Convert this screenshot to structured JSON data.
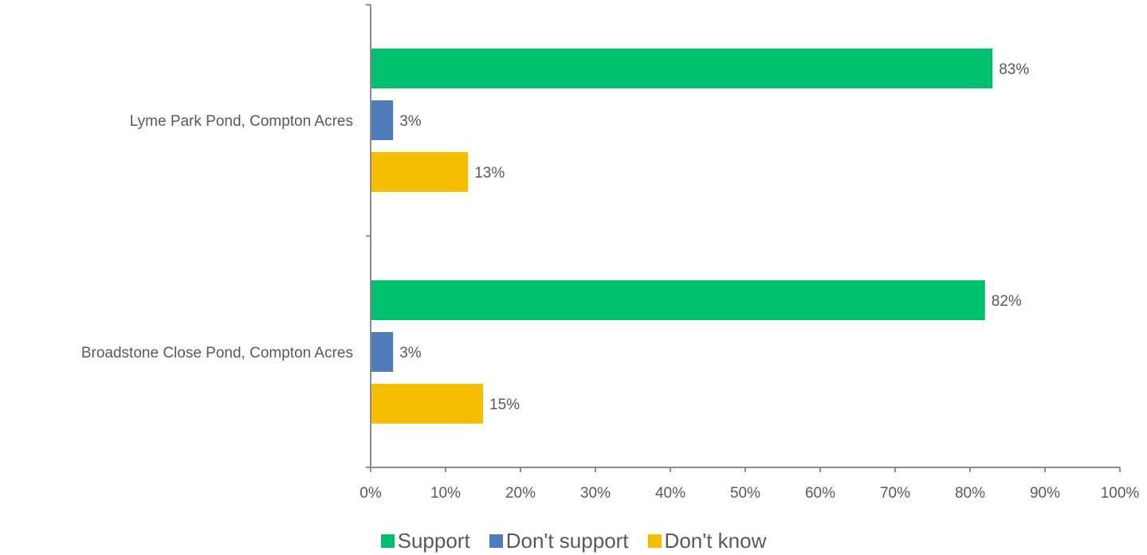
{
  "chart_data": {
    "type": "bar",
    "orientation": "horizontal",
    "categories": [
      "Lyme Park Pond, Compton Acres",
      "Broadstone Close Pond, Compton Acres"
    ],
    "series": [
      {
        "name": "Support",
        "color": "#00BF6F",
        "values": [
          83,
          82
        ],
        "labels": [
          "83%",
          "82%"
        ]
      },
      {
        "name": "Don't support",
        "color": "#4F7CBA",
        "values": [
          3,
          3
        ],
        "labels": [
          "3%",
          "3%"
        ]
      },
      {
        "name": "Don't know",
        "color": "#F5BE00",
        "values": [
          13,
          15
        ],
        "labels": [
          "13%",
          "15%"
        ]
      }
    ],
    "x_ticks": [
      "0%",
      "10%",
      "20%",
      "30%",
      "40%",
      "50%",
      "60%",
      "70%",
      "80%",
      "90%",
      "100%"
    ],
    "xlim": [
      0,
      100
    ],
    "xlabel": "",
    "ylabel": "",
    "grid": false,
    "legend_position": "bottom"
  }
}
